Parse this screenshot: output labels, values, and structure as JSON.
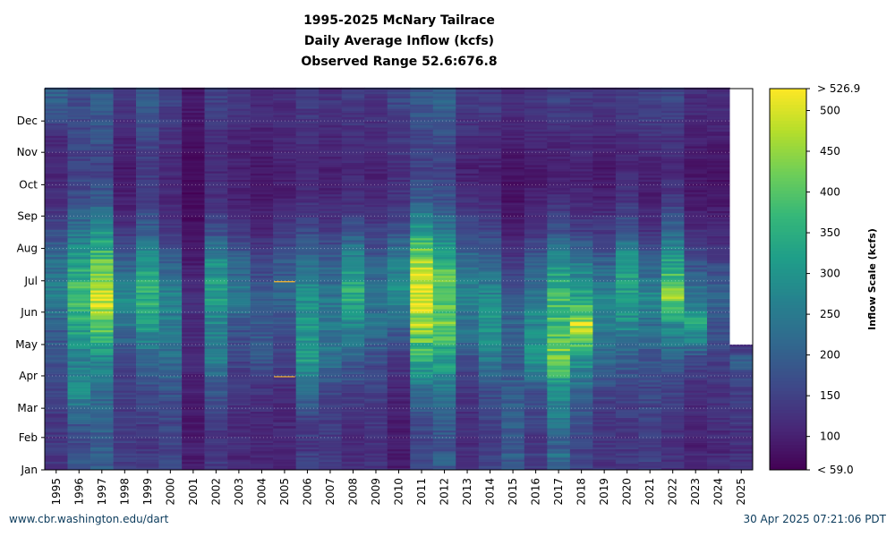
{
  "title": "1995-2025 McNary Tailrace",
  "subtitle": "Daily Average Inflow (kcfs)",
  "range_label": "Observed Range 52.6:676.8",
  "footer": {
    "source": "www.cbr.washington.edu/dart",
    "timestamp": "30 Apr 2025 07:21:06 PDT"
  },
  "chart_data": {
    "type": "heatmap",
    "x_categories": [
      "1995",
      "1996",
      "1997",
      "1998",
      "1999",
      "2000",
      "2001",
      "2002",
      "2003",
      "2004",
      "2005",
      "2006",
      "2007",
      "2008",
      "2009",
      "2010",
      "2011",
      "2012",
      "2013",
      "2014",
      "2015",
      "2016",
      "2017",
      "2018",
      "2019",
      "2020",
      "2021",
      "2022",
      "2023",
      "2024",
      "2025"
    ],
    "y_categories": [
      "Jan",
      "Feb",
      "Mar",
      "Apr",
      "May",
      "Jun",
      "Jul",
      "Aug",
      "Sep",
      "Oct",
      "Nov",
      "Dec"
    ],
    "colorbar": {
      "label": "Inflow Scale (kcfs)",
      "min": 59.0,
      "max": 526.9,
      "min_label": "< 59.0",
      "max_label": "> 526.9",
      "ticks": [
        100,
        150,
        200,
        250,
        300,
        350,
        400,
        450,
        500
      ],
      "colormap": "viridis"
    },
    "monthly_values": [
      [
        140,
        130,
        150,
        170,
        200,
        260,
        230,
        170,
        120,
        110,
        115,
        200
      ],
      [
        160,
        190,
        300,
        260,
        330,
        380,
        330,
        240,
        170,
        150,
        160,
        170
      ],
      [
        190,
        200,
        230,
        280,
        400,
        520,
        410,
        300,
        190,
        150,
        180,
        190
      ],
      [
        150,
        140,
        140,
        160,
        240,
        280,
        200,
        130,
        100,
        90,
        110,
        130
      ],
      [
        130,
        140,
        170,
        210,
        300,
        360,
        300,
        200,
        150,
        140,
        160,
        190
      ],
      [
        150,
        160,
        180,
        230,
        250,
        260,
        200,
        140,
        110,
        110,
        130,
        150
      ],
      [
        100,
        90,
        100,
        110,
        120,
        120,
        95,
        80,
        70,
        70,
        80,
        90
      ],
      [
        130,
        140,
        180,
        250,
        260,
        330,
        290,
        170,
        120,
        110,
        120,
        150
      ],
      [
        120,
        110,
        130,
        160,
        180,
        250,
        210,
        140,
        100,
        100,
        110,
        130
      ],
      [
        110,
        110,
        130,
        180,
        190,
        190,
        160,
        110,
        90,
        90,
        100,
        120
      ],
      [
        110,
        110,
        120,
        150,
        170,
        210,
        190,
        140,
        100,
        100,
        110,
        120
      ],
      [
        130,
        150,
        210,
        320,
        300,
        300,
        230,
        160,
        120,
        110,
        120,
        140
      ],
      [
        140,
        140,
        160,
        230,
        250,
        240,
        200,
        140,
        110,
        100,
        110,
        130
      ],
      [
        120,
        120,
        150,
        200,
        280,
        350,
        300,
        180,
        120,
        110,
        120,
        140
      ],
      [
        120,
        130,
        150,
        170,
        230,
        230,
        200,
        150,
        110,
        100,
        120,
        130
      ],
      [
        100,
        90,
        110,
        140,
        200,
        300,
        260,
        180,
        130,
        120,
        140,
        160
      ],
      [
        150,
        170,
        230,
        340,
        450,
        520,
        470,
        320,
        200,
        150,
        160,
        190
      ],
      [
        170,
        200,
        250,
        320,
        400,
        430,
        360,
        250,
        180,
        150,
        170,
        200
      ],
      [
        120,
        120,
        140,
        170,
        240,
        260,
        230,
        170,
        120,
        100,
        120,
        140
      ],
      [
        140,
        150,
        170,
        250,
        300,
        280,
        220,
        160,
        110,
        100,
        120,
        140
      ],
      [
        170,
        200,
        190,
        190,
        210,
        190,
        140,
        100,
        80,
        80,
        100,
        120
      ],
      [
        120,
        150,
        180,
        300,
        280,
        250,
        200,
        130,
        100,
        90,
        110,
        130
      ],
      [
        180,
        240,
        280,
        430,
        380,
        370,
        300,
        180,
        120,
        100,
        110,
        150
      ],
      [
        150,
        170,
        220,
        300,
        480,
        330,
        250,
        150,
        110,
        100,
        120,
        140
      ],
      [
        130,
        130,
        160,
        220,
        250,
        270,
        200,
        140,
        100,
        90,
        110,
        130
      ],
      [
        130,
        140,
        160,
        200,
        280,
        320,
        310,
        190,
        130,
        110,
        120,
        140
      ],
      [
        140,
        150,
        160,
        180,
        230,
        270,
        200,
        130,
        100,
        100,
        130,
        150
      ],
      [
        120,
        130,
        150,
        200,
        280,
        440,
        330,
        210,
        140,
        110,
        130,
        160
      ],
      [
        100,
        110,
        120,
        160,
        340,
        240,
        180,
        120,
        90,
        90,
        100,
        120
      ],
      [
        110,
        120,
        130,
        150,
        180,
        200,
        160,
        110,
        90,
        80,
        100,
        120
      ],
      [
        120,
        130,
        150,
        200,
        0,
        0,
        0,
        0,
        0,
        0,
        0,
        0
      ]
    ],
    "data_through": "2025-04-29",
    "annotations": [
      {
        "year": "2005",
        "month": "Jul",
        "note": "highlight-line"
      },
      {
        "year": "2005",
        "month": "Apr",
        "note": "highlight-line"
      }
    ]
  }
}
